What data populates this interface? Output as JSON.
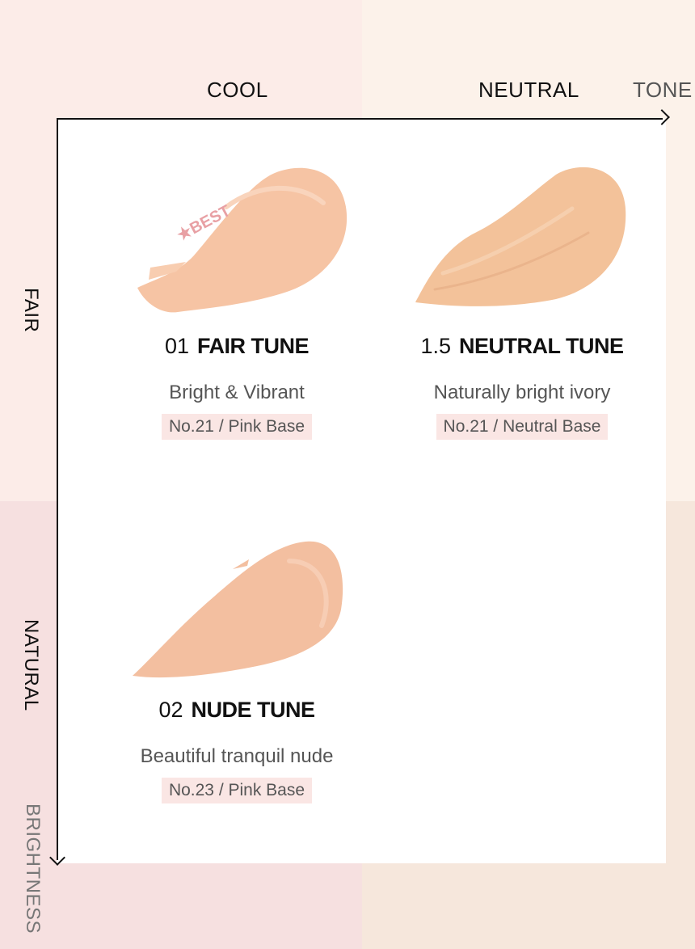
{
  "axes": {
    "tone_columns": [
      "COOL",
      "NEUTRAL"
    ],
    "tone_title": "TONE",
    "brightness_rows": [
      "FAIR",
      "NATURAL"
    ],
    "brightness_title": "BRIGHTNESS"
  },
  "products": [
    {
      "number": "01",
      "name": "FAIR TUNE",
      "description": "Bright & Vibrant",
      "shade": "No.21 / Pink Base",
      "badge": "★BEST",
      "swatch_color": "#f6c4a4"
    },
    {
      "number": "1.5",
      "name": "NEUTRAL TUNE",
      "description": "Naturally bright ivory",
      "shade": "No.21 / Neutral Base",
      "swatch_color": "#f3c29a"
    },
    {
      "number": "02",
      "name": "NUDE TUNE",
      "description": "Beautiful tranquil nude",
      "shade": "No.23 / Pink Base",
      "swatch_color": "#f3bfa0"
    }
  ],
  "colors": {
    "cool_fair_bg": "#fcece8",
    "neutral_fair_bg": "#fcf2ea",
    "cool_natural_bg": "#f6e0e0",
    "neutral_natural_bg": "#f6e7dc",
    "badge_bg": "#fae6e4",
    "best_text": "#e8a0a4"
  }
}
